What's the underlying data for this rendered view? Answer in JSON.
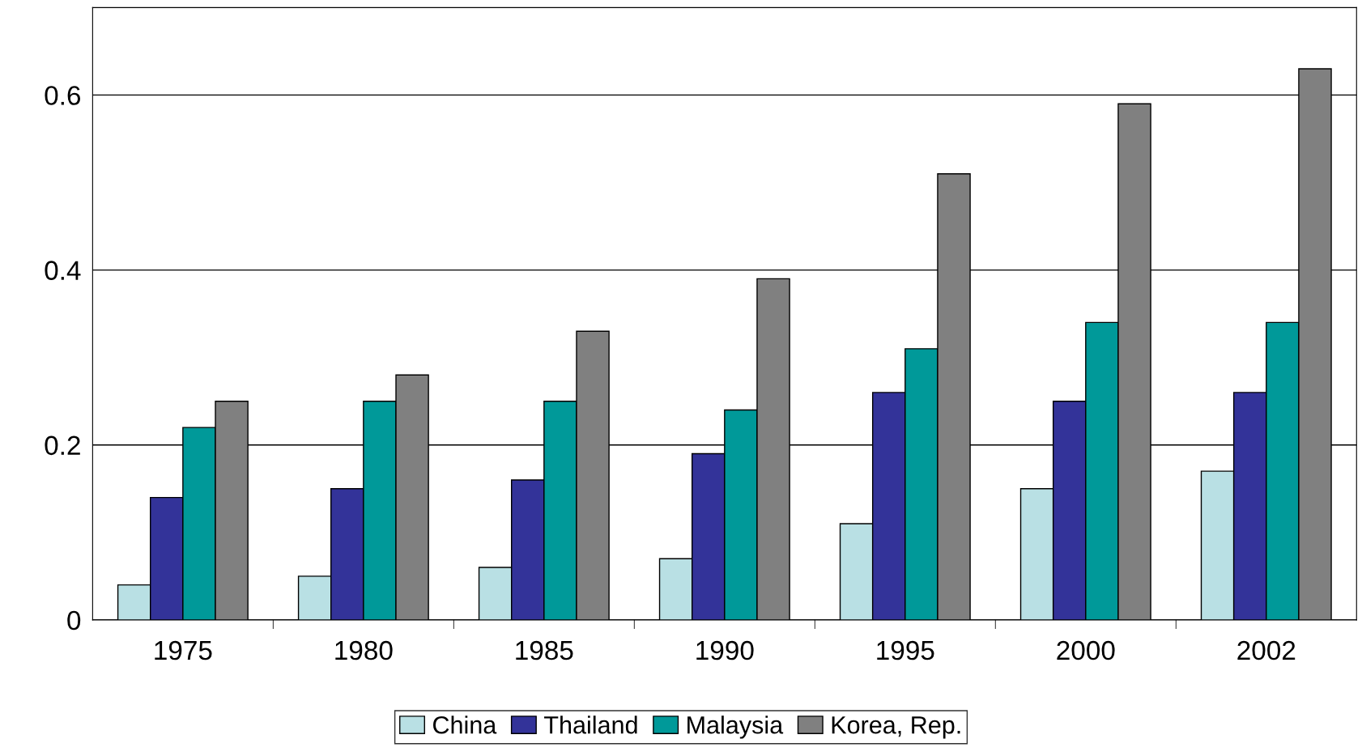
{
  "chart_data": {
    "type": "bar",
    "categories": [
      "1975",
      "1980",
      "1985",
      "1990",
      "1995",
      "2000",
      "2002"
    ],
    "series": [
      {
        "name": "China",
        "color": "#b9e0e4",
        "values": [
          0.04,
          0.05,
          0.06,
          0.07,
          0.11,
          0.15,
          0.17
        ]
      },
      {
        "name": "Thailand",
        "color": "#333399",
        "values": [
          0.14,
          0.15,
          0.16,
          0.19,
          0.26,
          0.25,
          0.26
        ]
      },
      {
        "name": "Malaysia",
        "color": "#009999",
        "values": [
          0.22,
          0.25,
          0.25,
          0.24,
          0.31,
          0.34,
          0.34
        ]
      },
      {
        "name": "Korea, Rep.",
        "color": "#808080",
        "values": [
          0.25,
          0.28,
          0.33,
          0.39,
          0.51,
          0.59,
          0.63
        ]
      }
    ],
    "ylim": [
      0,
      0.7
    ],
    "yticks": [
      0,
      0.2,
      0.4,
      0.6
    ],
    "grid": "y",
    "legend": "bottom"
  }
}
